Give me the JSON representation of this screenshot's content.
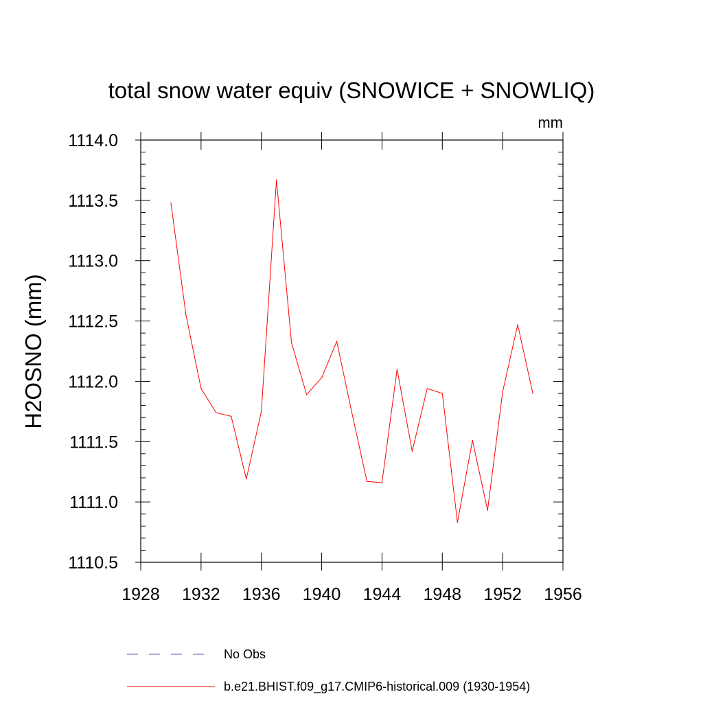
{
  "chart_data": {
    "type": "line",
    "title": "total snow water equiv (SNOWICE + SNOWLIQ)",
    "units_label": "mm",
    "xlabel": "",
    "ylabel": "H2OSNO  (mm)",
    "xlim": [
      1928,
      1956
    ],
    "ylim": [
      1110.5,
      1114.0
    ],
    "xticks": [
      1928,
      1932,
      1936,
      1940,
      1944,
      1948,
      1952,
      1956
    ],
    "xtick_labels": [
      "1928",
      "1932",
      "1936",
      "1940",
      "1944",
      "1948",
      "1952",
      "1956"
    ],
    "yticks": [
      1110.5,
      1111.0,
      1111.5,
      1112.0,
      1112.5,
      1113.0,
      1113.5,
      1114.0
    ],
    "ytick_labels": [
      "1110.5",
      "1111.0",
      "1111.5",
      "1112.0",
      "1112.5",
      "1113.0",
      "1113.5",
      "1114.0"
    ],
    "grid": false,
    "legend_position": "bottom",
    "series": [
      {
        "name": "b.e21.BHIST.f09_g17.CMIP6-historical.009 (1930-1954)",
        "color": "#ff0000",
        "style": "solid",
        "x": [
          1930,
          1931,
          1932,
          1933,
          1934,
          1935,
          1936,
          1937,
          1938,
          1939,
          1940,
          1941,
          1942,
          1943,
          1944,
          1945,
          1946,
          1947,
          1948,
          1949,
          1950,
          1951,
          1952,
          1953,
          1954
        ],
        "values": [
          1113.48,
          1112.55,
          1111.94,
          1111.74,
          1111.71,
          1111.19,
          1111.75,
          1113.67,
          1112.32,
          1111.89,
          1112.03,
          1112.33,
          1111.74,
          1111.17,
          1111.16,
          1112.1,
          1111.42,
          1111.94,
          1111.9,
          1110.83,
          1111.51,
          1110.93,
          1111.91,
          1112.47,
          1111.9
        ]
      }
    ],
    "legend": [
      {
        "label": "No Obs",
        "color": "#5555bb",
        "style": "dashed"
      },
      {
        "label": "b.e21.BHIST.f09_g17.CMIP6-historical.009 (1930-1954)",
        "color": "#ff0000",
        "style": "solid"
      }
    ]
  }
}
